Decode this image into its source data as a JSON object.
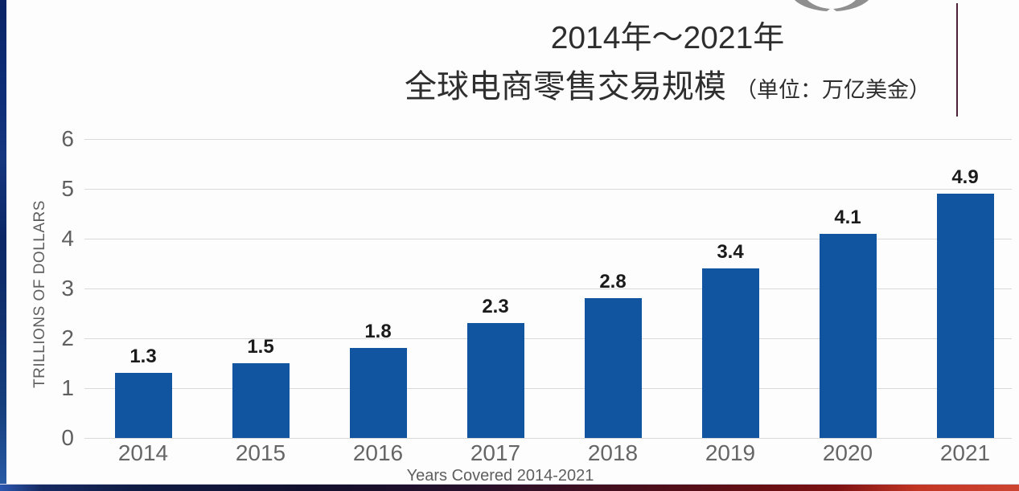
{
  "title": {
    "line1": "2014年～2021年",
    "line2_main": "全球电商零售交易规模",
    "line2_unit": "（单位：万亿美金）"
  },
  "decor": {
    "partial_logo_icon": "cropped-circular-swoosh-logo",
    "logo_color": "#8f8f8f",
    "accent_line_color": "#4e2039",
    "left_strip_color": "#0d2d77",
    "bottom_strip_left_color": "#162a63",
    "bottom_strip_right_color": "#c23524"
  },
  "chart_data": {
    "type": "bar",
    "categories": [
      "2014",
      "2015",
      "2016",
      "2017",
      "2018",
      "2019",
      "2020",
      "2021"
    ],
    "values": [
      1.3,
      1.5,
      1.8,
      2.3,
      2.8,
      3.4,
      4.1,
      4.9
    ],
    "value_labels": [
      "1.3",
      "1.5",
      "1.8",
      "2.3",
      "2.8",
      "3.4",
      "4.1",
      "4.9"
    ],
    "title": "2014年～2021年 全球电商零售交易规模（单位：万亿美金）",
    "xlabel": "Years Covered 2014-2021",
    "ylabel": "TRILLIONS OF DOLLARS",
    "ylim": [
      0,
      6
    ],
    "yticks": [
      0,
      1,
      2,
      3,
      4,
      5,
      6
    ],
    "grid": true,
    "legend": false,
    "bar_color": "#11549f",
    "grid_color": "#d9d9d9",
    "tick_color": "#5f5f5f",
    "value_label_color": "#1b1b1b"
  }
}
